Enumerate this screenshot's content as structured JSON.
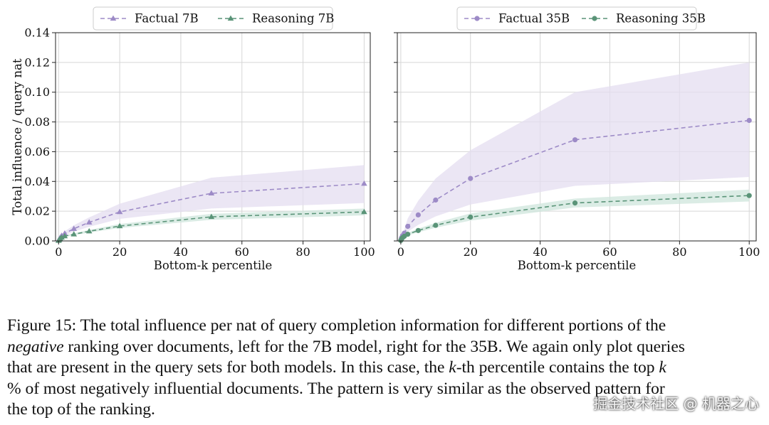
{
  "chart_data": [
    {
      "type": "line",
      "panel": "left",
      "title": "",
      "xlabel": "Bottom-k percentile",
      "ylabel": "Total influence / query nat",
      "xlim": [
        -1,
        102
      ],
      "ylim": [
        0,
        0.14
      ],
      "xticks": [
        0,
        20,
        40,
        60,
        80,
        100
      ],
      "yticks": [
        0.0,
        0.02,
        0.04,
        0.06,
        0.08,
        0.1,
        0.12,
        0.14
      ],
      "yticklabels": [
        "0.00",
        "0.02",
        "0.04",
        "0.06",
        "0.08",
        "0.10",
        "0.12",
        "0.14"
      ],
      "grid": true,
      "legend_position": "top-center",
      "series": [
        {
          "name": "Factual 7B",
          "color": "#9d8bc7",
          "fill": "#e4def0",
          "marker": "triangle",
          "x": [
            0,
            0.2,
            0.5,
            1,
            2,
            5,
            10,
            20,
            50,
            100
          ],
          "values": [
            0.0003,
            0.0011,
            0.0022,
            0.0035,
            0.005,
            0.0082,
            0.0125,
            0.0195,
            0.032,
            0.0385
          ],
          "lower": [
            0.0002,
            0.0008,
            0.0016,
            0.0026,
            0.0038,
            0.0062,
            0.0095,
            0.0148,
            0.0218,
            0.0255
          ],
          "upper": [
            0.0004,
            0.0014,
            0.0028,
            0.0045,
            0.0065,
            0.0105,
            0.0158,
            0.025,
            0.0425,
            0.051
          ]
        },
        {
          "name": "Reasoning 7B",
          "color": "#5a9478",
          "fill": "#cfe6dc",
          "marker": "triangle",
          "x": [
            0,
            0.2,
            0.5,
            1,
            2,
            5,
            10,
            20,
            50,
            100
          ],
          "values": [
            0.0002,
            0.0008,
            0.0015,
            0.0023,
            0.0032,
            0.0045,
            0.0065,
            0.01,
            0.0162,
            0.0195
          ],
          "lower": [
            0.0001,
            0.0006,
            0.0012,
            0.0019,
            0.0027,
            0.0039,
            0.0056,
            0.0087,
            0.0142,
            0.0172
          ],
          "upper": [
            0.0003,
            0.001,
            0.0018,
            0.0027,
            0.0037,
            0.0051,
            0.0074,
            0.0114,
            0.0182,
            0.0218
          ]
        }
      ]
    },
    {
      "type": "line",
      "panel": "right",
      "title": "",
      "xlabel": "Bottom-k percentile",
      "ylabel": "",
      "xlim": [
        -1,
        102
      ],
      "ylim": [
        0,
        0.14
      ],
      "xticks": [
        0,
        20,
        40,
        60,
        80,
        100
      ],
      "yticks": [
        0.0,
        0.02,
        0.04,
        0.06,
        0.08,
        0.1,
        0.12,
        0.14
      ],
      "grid": true,
      "legend_position": "top-center",
      "series": [
        {
          "name": "Factual 35B",
          "color": "#9d8bc7",
          "fill": "#e4def0",
          "marker": "circle",
          "x": [
            0,
            0.2,
            0.5,
            1,
            2,
            5,
            10,
            20,
            50,
            100
          ],
          "values": [
            0.0005,
            0.002,
            0.0035,
            0.0052,
            0.0098,
            0.0175,
            0.0275,
            0.042,
            0.068,
            0.081
          ],
          "lower": [
            0.0003,
            0.0012,
            0.0022,
            0.0033,
            0.0062,
            0.0108,
            0.0165,
            0.0245,
            0.037,
            0.043
          ],
          "upper": [
            0.0008,
            0.003,
            0.0052,
            0.0078,
            0.0152,
            0.027,
            0.042,
            0.061,
            0.1,
            0.12
          ]
        },
        {
          "name": "Reasoning 35B",
          "color": "#5a9478",
          "fill": "#cfe6dc",
          "marker": "circle",
          "x": [
            0,
            0.2,
            0.5,
            1,
            2,
            5,
            10,
            20,
            50,
            100
          ],
          "values": [
            0.0003,
            0.0012,
            0.0022,
            0.0031,
            0.0045,
            0.007,
            0.0105,
            0.016,
            0.0255,
            0.0305
          ],
          "lower": [
            0.0002,
            0.0009,
            0.0017,
            0.0025,
            0.0037,
            0.0058,
            0.0089,
            0.0137,
            0.0225,
            0.0265
          ],
          "upper": [
            0.0004,
            0.0015,
            0.0027,
            0.0038,
            0.0054,
            0.0083,
            0.0122,
            0.0185,
            0.0285,
            0.0345
          ]
        }
      ]
    }
  ],
  "caption": {
    "line1": "Figure 15: The total influence per nat of query completion information for different portions of the",
    "line2_em": "negative",
    "line2_rest": " ranking over documents, left for the 7B model, right for the 35B. We again only plot queries",
    "line3_a": "that are present in the query sets for both models. In this case, the ",
    "line3_k": "k",
    "line3_b": "-th percentile contains the top ",
    "line3_k2": "k",
    "line4": "% of most negatively influential documents. The pattern is very similar as the observed pattern for",
    "line5": "the top of the ranking."
  },
  "watermark": "掘金技术社区 @ 机器之心"
}
